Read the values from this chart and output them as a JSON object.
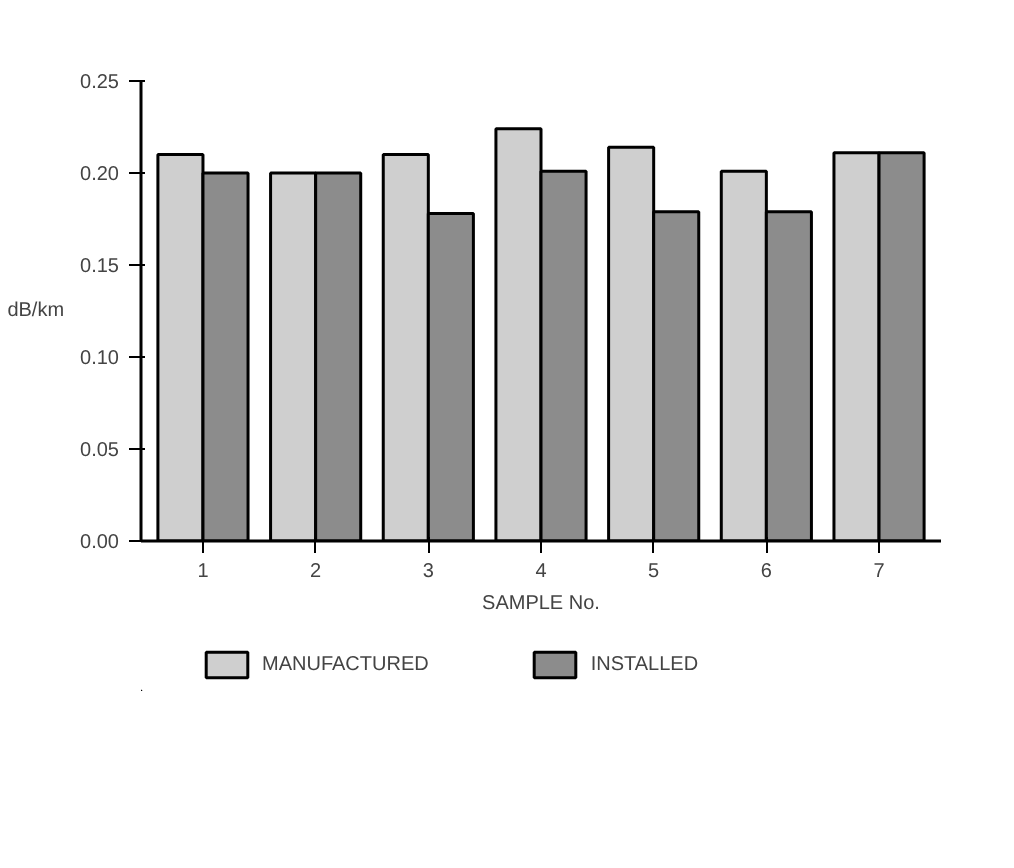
{
  "chart_data": {
    "type": "bar",
    "xlabel": "SAMPLE No.",
    "ylabel": "dB/km",
    "categories": [
      "1",
      "2",
      "3",
      "4",
      "5",
      "6",
      "7"
    ],
    "series": [
      {
        "name": "MANUFACTURED",
        "color": "#cfcfcf",
        "values": [
          0.21,
          0.2,
          0.21,
          0.224,
          0.214,
          0.201,
          0.211
        ]
      },
      {
        "name": "INSTALLED",
        "color": "#8c8c8c",
        "values": [
          0.2,
          0.2,
          0.178,
          0.201,
          0.179,
          0.179,
          0.211
        ]
      }
    ],
    "ylim": [
      0,
      0.25
    ],
    "yticks": [
      {
        "value": 0,
        "label": "0.00"
      },
      {
        "value": 0.05,
        "label": "0.05"
      },
      {
        "value": 0.1,
        "label": "0.10"
      },
      {
        "value": 0.15,
        "label": "0.15"
      },
      {
        "value": 0.2,
        "label": "0.20"
      },
      {
        "value": 0.25,
        "label": "0.25"
      }
    ],
    "grid": false,
    "legend": "bottom"
  }
}
